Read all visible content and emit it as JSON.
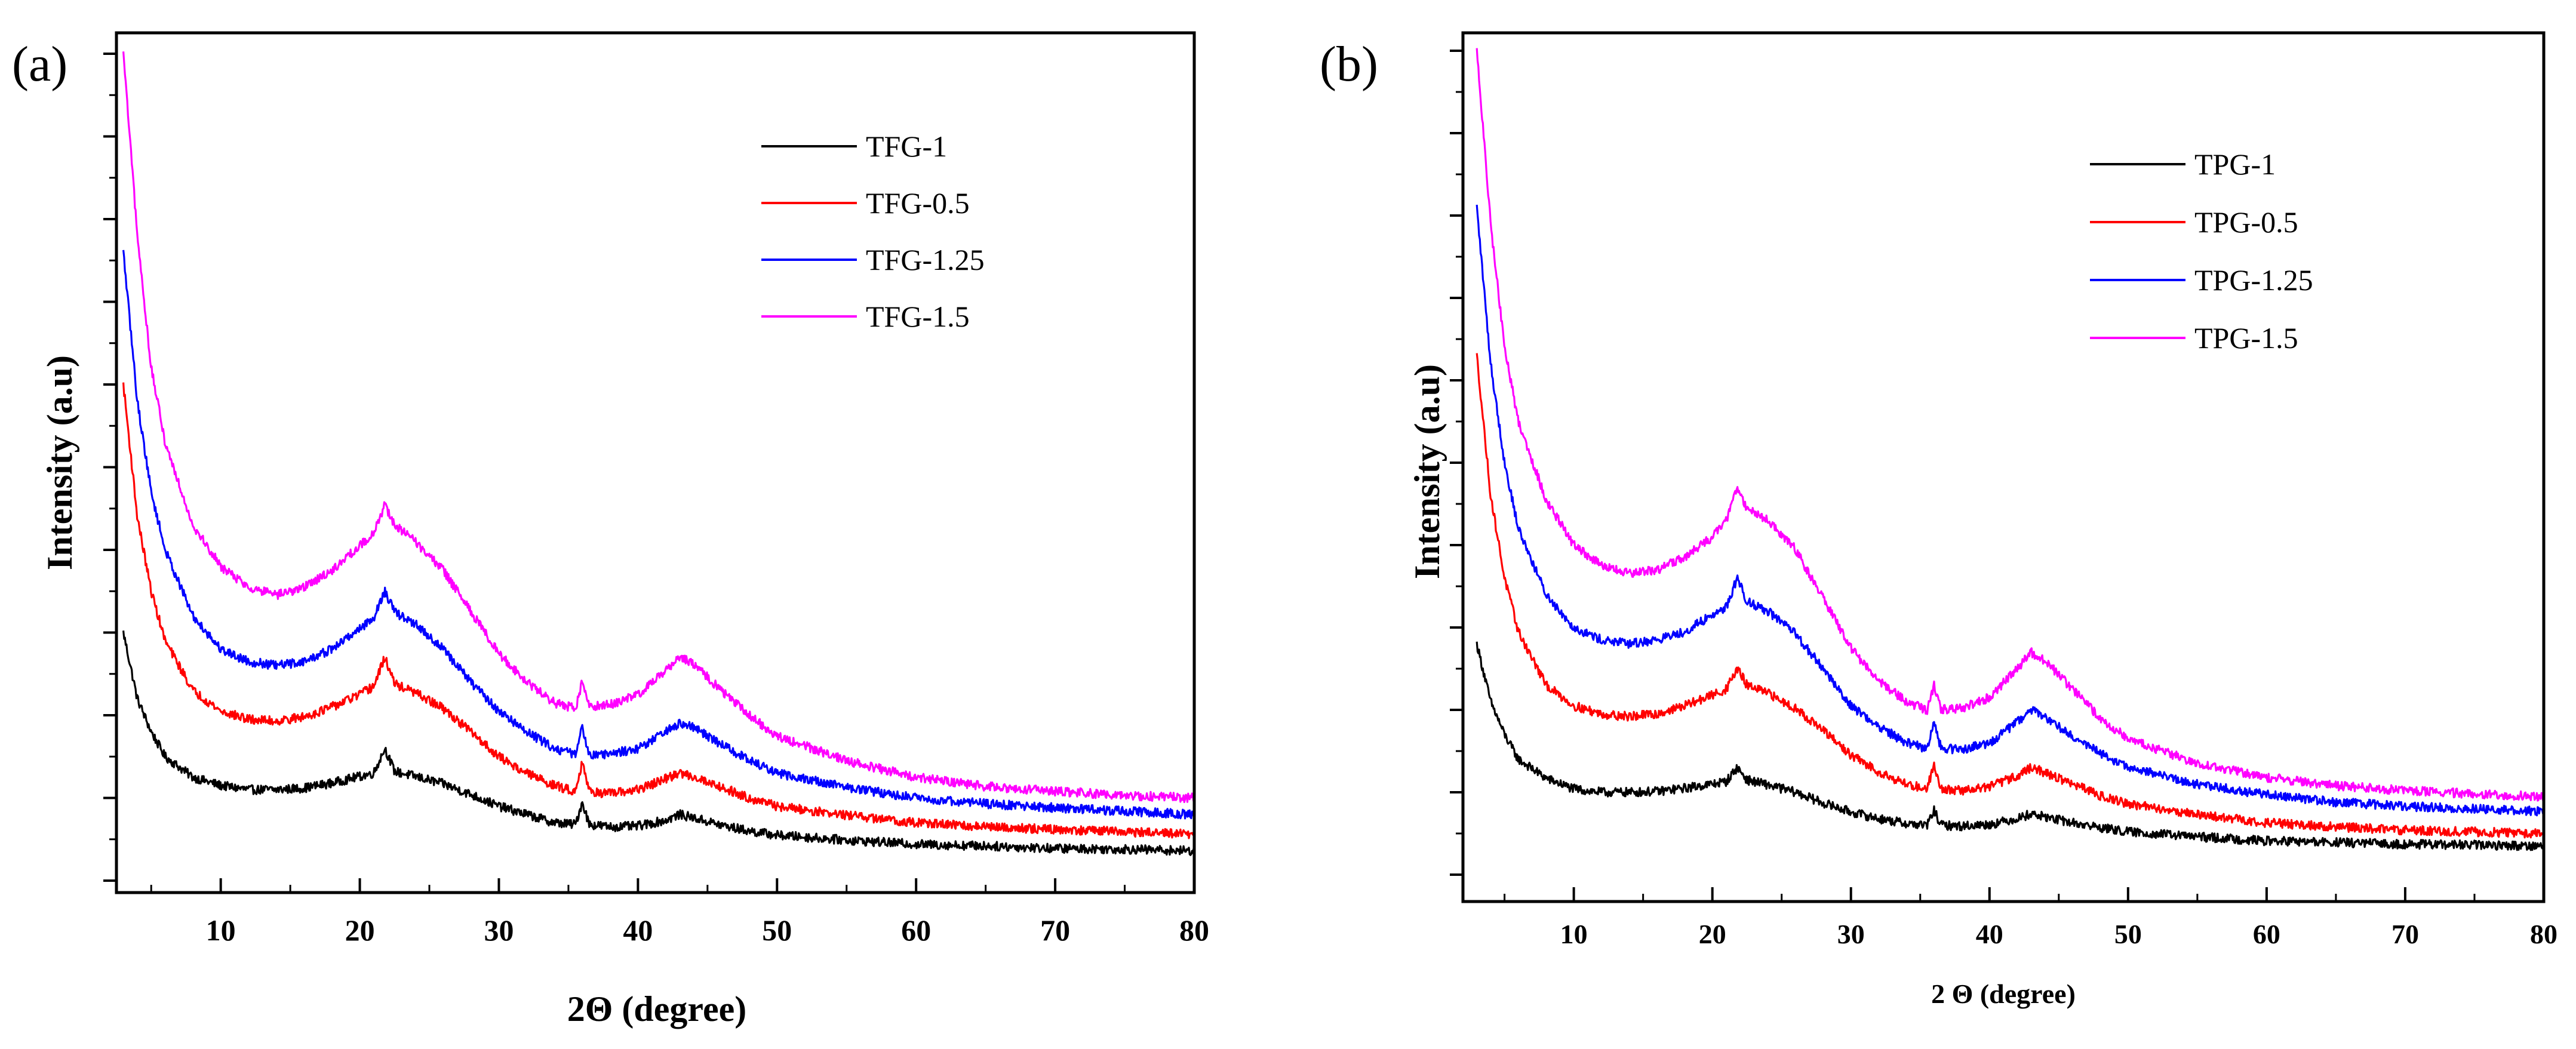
{
  "chart_data": [
    {
      "type": "line",
      "panel_label": "(a)",
      "title": "",
      "xlabel": "2Θ (degree)",
      "ylabel": "Intensity (a.u)",
      "xlim": [
        2.5,
        80
      ],
      "ylim": [
        0,
        100
      ],
      "y_tick_labels_shown": false,
      "grid": false,
      "legend_position": "top-right",
      "x_ticks": [
        10,
        20,
        30,
        40,
        50,
        60,
        70,
        80
      ],
      "x_tick_labels": [
        "10",
        "20",
        "30",
        "40",
        "50",
        "60",
        "70",
        "80"
      ],
      "y_ticks": [
        0,
        10,
        20,
        30,
        40,
        50,
        60,
        70,
        80,
        90,
        100
      ],
      "series": [
        {
          "name": "TFG-1",
          "color": "#000000",
          "x": [
            3,
            4,
            5,
            6,
            8,
            10,
            12,
            14,
            16,
            18,
            20,
            21,
            21.8,
            22.5,
            24,
            26,
            28,
            30,
            32,
            34,
            35.5,
            36,
            36.5,
            38,
            40,
            42,
            43,
            44,
            46,
            48,
            50,
            55,
            60,
            65,
            70,
            75,
            80
          ],
          "values": [
            30,
            22,
            18,
            15,
            12.5,
            11.5,
            11,
            11,
            11.2,
            11.8,
            12.6,
            13,
            16,
            13.2,
            12.6,
            11.7,
            10.4,
            9,
            8,
            7,
            6.8,
            9.5,
            6.8,
            6.5,
            6.6,
            7.3,
            8,
            7.6,
            6.7,
            6,
            5.5,
            4.9,
            4.4,
            4.2,
            3.9,
            3.8,
            3.6
          ]
        },
        {
          "name": "TFG-0.5",
          "color": "#ff0000",
          "x": [
            3,
            4,
            5,
            6,
            8,
            10,
            12,
            14,
            16,
            18,
            20,
            21,
            21.8,
            22.5,
            24,
            26,
            28,
            30,
            32,
            34,
            35.5,
            36,
            36.5,
            38,
            40,
            42,
            43,
            44,
            46,
            48,
            50,
            55,
            60,
            65,
            70,
            75,
            80
          ],
          "values": [
            60,
            44,
            35,
            29,
            23,
            20.5,
            19.5,
            19.3,
            19.8,
            21,
            22.5,
            23.5,
            27,
            23.8,
            22.7,
            20.8,
            18,
            15,
            13,
            11.5,
            10.8,
            14.5,
            10.8,
            10.5,
            11,
            12.3,
            13,
            12.6,
            11.3,
            10,
            9,
            7.9,
            7,
            6.5,
            6.2,
            5.9,
            5.6
          ]
        },
        {
          "name": "TFG-1.25",
          "color": "#0000ff",
          "x": [
            3,
            4,
            5,
            6,
            8,
            10,
            12,
            14,
            16,
            18,
            20,
            21,
            21.8,
            22.5,
            24,
            26,
            28,
            30,
            32,
            34,
            35.5,
            36,
            36.5,
            38,
            40,
            42,
            43,
            44,
            46,
            48,
            50,
            55,
            60,
            65,
            70,
            75,
            80
          ],
          "values": [
            76,
            58,
            47,
            40,
            32,
            28,
            26.5,
            26,
            26.5,
            28,
            30.5,
            31.8,
            35,
            32.5,
            31,
            28,
            24,
            20.5,
            18,
            16,
            15.3,
            18.5,
            15.3,
            15.3,
            16,
            18,
            19,
            18.5,
            16.5,
            14.5,
            13,
            11.3,
            10,
            9.3,
            8.8,
            8.4,
            8
          ]
        },
        {
          "name": "TFG-1.5",
          "color": "#ff00ff",
          "x": [
            3,
            4,
            5,
            6,
            8,
            10,
            12,
            14,
            16,
            18,
            20,
            21,
            21.8,
            22.5,
            24,
            26,
            28,
            30,
            32,
            34,
            35.5,
            36,
            36.5,
            38,
            40,
            42,
            43,
            44,
            46,
            48,
            50,
            55,
            60,
            65,
            70,
            75,
            80
          ],
          "values": [
            100,
            78,
            62,
            53,
            43,
            38,
            35.5,
            34.5,
            35.5,
            37.5,
            40.5,
            42,
            45.5,
            43,
            41,
            37.5,
            32.5,
            27.5,
            24,
            21.5,
            20.8,
            24,
            21,
            21.3,
            22.5,
            25.5,
            27,
            26.2,
            23,
            20,
            17.5,
            14.5,
            12.5,
            11.4,
            10.8,
            10.3,
            10
          ]
        }
      ]
    },
    {
      "type": "line",
      "panel_label": "(b)",
      "title": "",
      "xlabel": "2 Θ (degree)",
      "ylabel": "Intensity (a.u)",
      "xlim": [
        2,
        80
      ],
      "ylim": [
        0,
        100
      ],
      "y_tick_labels_shown": false,
      "grid": false,
      "legend_position": "top-right",
      "x_ticks": [
        10,
        20,
        30,
        40,
        50,
        60,
        70,
        80
      ],
      "x_tick_labels": [
        "10",
        "20",
        "30",
        "40",
        "50",
        "60",
        "70",
        "80"
      ],
      "y_ticks": [
        0,
        10,
        20,
        30,
        40,
        50,
        60,
        70,
        80,
        90,
        100
      ],
      "series": [
        {
          "name": "TPG-1",
          "color": "#000000",
          "x": [
            3,
            4,
            5,
            6,
            8,
            10,
            12,
            14,
            16,
            18,
            20,
            21,
            21.8,
            22.5,
            24,
            26,
            28,
            30,
            32,
            34,
            35.5,
            36,
            36.5,
            38,
            40,
            42,
            43,
            44,
            46,
            48,
            50,
            55,
            60,
            65,
            70,
            75,
            80
          ],
          "values": [
            28,
            21,
            17,
            14,
            11.7,
            10.4,
            10,
            10,
            10.1,
            10.5,
            11,
            11.3,
            13,
            11.5,
            10.9,
            10,
            8.7,
            7.6,
            6.8,
            6.2,
            6,
            7.8,
            6,
            5.9,
            6.1,
            6.8,
            7.4,
            7,
            6.3,
            5.7,
            5.2,
            4.6,
            4.1,
            3.9,
            3.7,
            3.6,
            3.5
          ]
        },
        {
          "name": "TPG-0.5",
          "color": "#ff0000",
          "x": [
            3,
            4,
            5,
            6,
            8,
            10,
            12,
            14,
            16,
            18,
            20,
            21,
            21.8,
            22.5,
            24,
            26,
            28,
            30,
            32,
            34,
            35.5,
            36,
            36.5,
            38,
            40,
            42,
            43,
            44,
            46,
            48,
            50,
            55,
            60,
            65,
            70,
            75,
            80
          ],
          "values": [
            63,
            46,
            36,
            29.5,
            23,
            20.5,
            19.5,
            19.2,
            19.5,
            20.5,
            21.8,
            22.5,
            25,
            23,
            22,
            20.2,
            17.5,
            14.5,
            12.5,
            11,
            10.4,
            13.5,
            10.4,
            10.2,
            10.7,
            12,
            13,
            12.4,
            11,
            9.6,
            8.6,
            7.3,
            6.3,
            5.8,
            5.4,
            5.2,
            5
          ]
        },
        {
          "name": "TPG-1.25",
          "color": "#0000ff",
          "x": [
            3,
            4,
            5,
            6,
            8,
            10,
            12,
            14,
            16,
            18,
            20,
            21,
            21.8,
            22.5,
            24,
            26,
            28,
            30,
            32,
            34,
            35.5,
            36,
            36.5,
            38,
            40,
            42,
            43,
            44,
            46,
            48,
            50,
            55,
            60,
            65,
            70,
            75,
            80
          ],
          "values": [
            81,
            62,
            50,
            42,
            34,
            30,
            28.5,
            28,
            28.5,
            29.5,
            31.5,
            32.5,
            36,
            33.2,
            32,
            29.2,
            25,
            20.5,
            18,
            16,
            15.3,
            18.8,
            15.3,
            15.2,
            16,
            18.5,
            20,
            19.2,
            16.8,
            14.7,
            13,
            11,
            9.7,
            8.8,
            8.3,
            8,
            7.7
          ]
        },
        {
          "name": "TPG-1.5",
          "color": "#ff00ff",
          "x": [
            3,
            4,
            5,
            6,
            8,
            10,
            12,
            14,
            16,
            18,
            20,
            21,
            21.8,
            22.5,
            24,
            26,
            28,
            30,
            32,
            34,
            35.5,
            36,
            36.5,
            38,
            40,
            42,
            43,
            44,
            46,
            48,
            50,
            55,
            60,
            65,
            70,
            75,
            80
          ],
          "values": [
            100,
            79,
            64,
            55,
            45.5,
            40,
            37.5,
            36.5,
            37,
            38.5,
            41,
            43,
            47,
            44.5,
            43,
            39.5,
            33.5,
            27.5,
            23.5,
            21,
            20,
            23,
            20,
            20.2,
            21.5,
            25,
            27,
            26,
            22.5,
            19,
            16.5,
            13.5,
            11.8,
            10.8,
            10.2,
            9.8,
            9.5
          ]
        }
      ]
    }
  ]
}
